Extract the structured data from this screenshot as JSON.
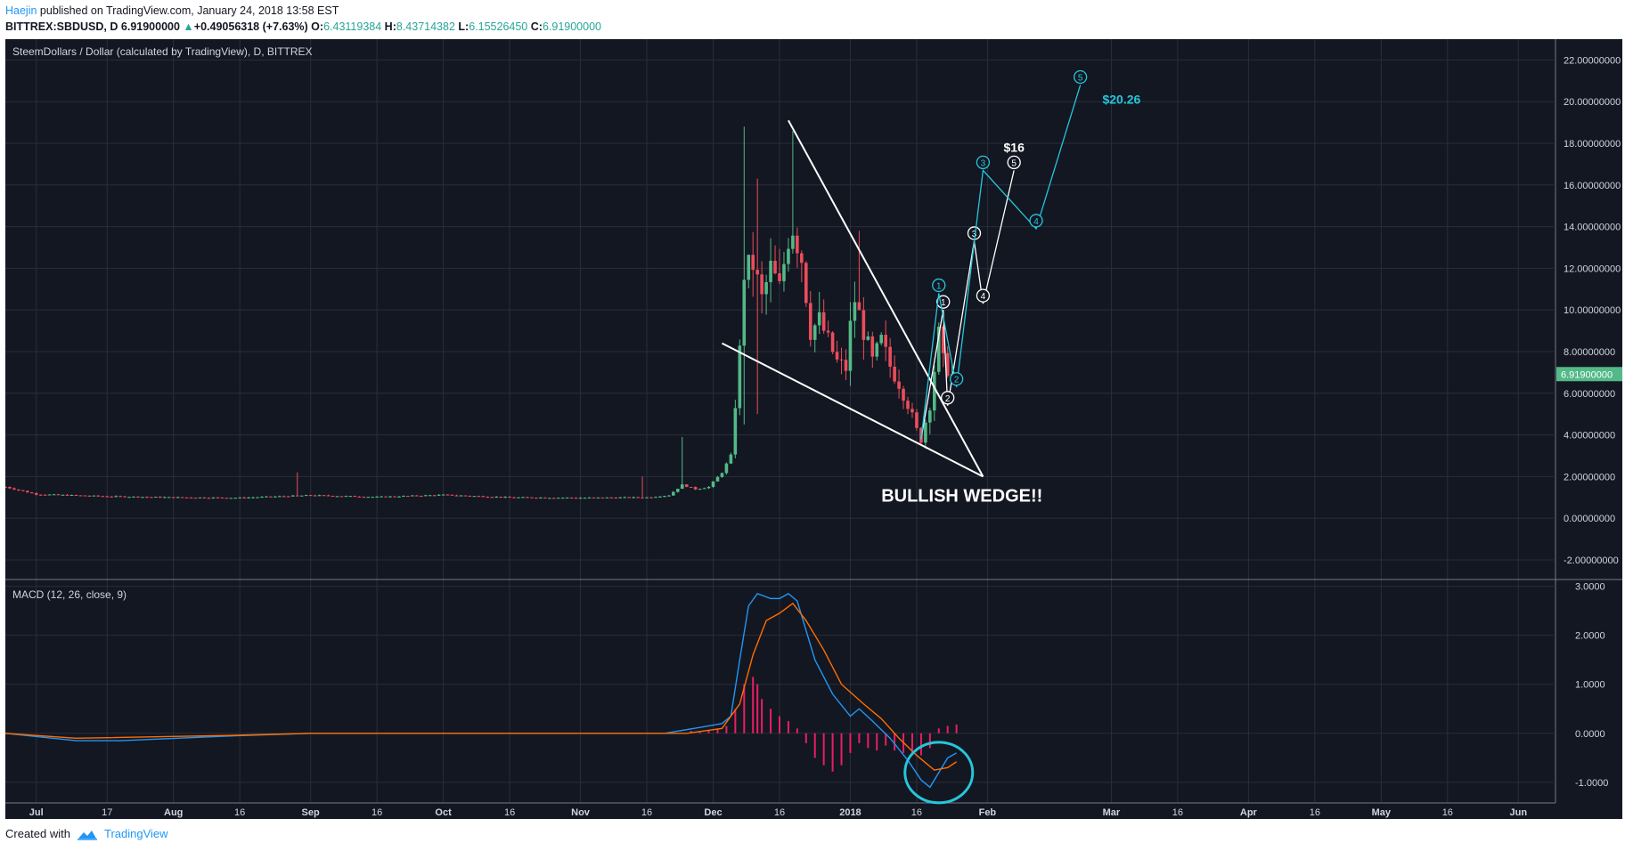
{
  "header": {
    "author": "Haejin",
    "published": "published on TradingView.com, January 24, 2018 13:58 EST",
    "symbol": "BITTREX:SBDUSD, D",
    "last": "6.91900000",
    "change_arrow": "▲",
    "change": "+0.49056318 (+7.63%)",
    "o_label": "O:",
    "o_value": "6.43119384",
    "h_label": "H:",
    "h_value": "8.43714382",
    "l_label": "L:",
    "l_value": "6.15526450",
    "c_label": "C:",
    "c_value": "6.91900000"
  },
  "footer": {
    "created_with": "Created with",
    "brand": "TradingView"
  },
  "colors": {
    "background": "#131722",
    "grid": "#2a2e39",
    "axis_text": "#d1d4dc",
    "up": "#53b987",
    "down": "#eb4d5c",
    "macd": "#2196f3",
    "signal": "#ff6d00",
    "histogram": "#e91e63",
    "cyan_annotation": "#26c6da",
    "white_annotation": "#ffffff"
  },
  "chart_data": [
    {
      "type": "candlestick",
      "title": "SteemDollars / Dollar (calculated by TradingView), D, BITTREX",
      "y_ticks": [
        "22.00000000",
        "20.00000000",
        "18.00000000",
        "16.00000000",
        "14.00000000",
        "12.00000000",
        "10.00000000",
        "8.00000000",
        "6.00000000",
        "4.00000000",
        "2.00000000",
        "0.00000000",
        "-2.00000000"
      ],
      "y_tick_values": [
        22,
        20,
        18,
        16,
        14,
        12,
        10,
        8,
        6,
        4,
        2,
        0,
        -2
      ],
      "ylim": [
        -2.9,
        23
      ],
      "x_ticks": [
        "Jul",
        "17",
        "Aug",
        "16",
        "Sep",
        "16",
        "Oct",
        "16",
        "Nov",
        "16",
        "Dec",
        "16",
        "2018",
        "16",
        "Feb",
        "Mar",
        "16",
        "Apr",
        "16",
        "May",
        "16",
        "Jun"
      ],
      "x_tick_dates": [
        "2017-07-01",
        "2017-07-17",
        "2017-08-01",
        "2017-08-16",
        "2017-09-01",
        "2017-09-16",
        "2017-10-01",
        "2017-10-16",
        "2017-11-01",
        "2017-11-16",
        "2017-12-01",
        "2017-12-16",
        "2018-01-01",
        "2018-01-16",
        "2018-02-01",
        "2018-03-01",
        "2018-03-16",
        "2018-04-01",
        "2018-04-16",
        "2018-05-01",
        "2018-05-16",
        "2018-06-01"
      ],
      "last_price_label": "6.91900000",
      "last_price": 6.919,
      "price_path": [
        [
          "2017-06-24",
          1.5
        ],
        [
          "2017-07-01",
          1.15
        ],
        [
          "2017-07-17",
          1.05
        ],
        [
          "2017-08-01",
          1.0
        ],
        [
          "2017-08-16",
          0.98
        ],
        [
          "2017-09-01",
          1.1
        ],
        [
          "2017-09-16",
          1.02
        ],
        [
          "2017-10-01",
          1.12
        ],
        [
          "2017-10-16",
          1.0
        ],
        [
          "2017-11-01",
          0.98
        ],
        [
          "2017-11-16",
          1.0
        ],
        [
          "2017-11-21",
          1.1
        ],
        [
          "2017-11-24",
          1.6
        ],
        [
          "2017-11-27",
          1.4
        ],
        [
          "2017-11-30",
          1.5
        ],
        [
          "2017-12-03",
          2.2
        ],
        [
          "2017-12-05",
          3.0
        ],
        [
          "2017-12-07",
          8.0
        ],
        [
          "2017-12-08",
          11.8
        ],
        [
          "2017-12-10",
          12.2
        ],
        [
          "2017-12-12",
          10.5
        ],
        [
          "2017-12-14",
          12.0
        ],
        [
          "2017-12-16",
          11.0
        ],
        [
          "2017-12-18",
          13.5
        ],
        [
          "2017-12-19",
          14.0
        ],
        [
          "2017-12-21",
          12.5
        ],
        [
          "2017-12-23",
          9.0
        ],
        [
          "2017-12-25",
          9.5
        ],
        [
          "2017-12-27",
          8.5
        ],
        [
          "2017-12-29",
          7.5
        ],
        [
          "2017-12-31",
          7.2
        ],
        [
          "2018-01-01",
          9.2
        ],
        [
          "2018-01-02",
          10.5
        ],
        [
          "2018-01-04",
          9.0
        ],
        [
          "2018-01-06",
          7.5
        ],
        [
          "2018-01-08",
          8.5
        ],
        [
          "2018-01-10",
          7.3
        ],
        [
          "2018-01-12",
          6.5
        ],
        [
          "2018-01-14",
          5.5
        ],
        [
          "2018-01-16",
          4.2
        ],
        [
          "2018-01-17",
          3.8
        ],
        [
          "2018-01-19",
          5.5
        ],
        [
          "2018-01-21",
          8.8
        ],
        [
          "2018-01-22",
          7.5
        ],
        [
          "2018-01-24",
          6.919
        ]
      ],
      "spikes": [
        {
          "date": "2017-08-29",
          "high": 2.2
        },
        {
          "date": "2017-11-15",
          "high": 2.0
        },
        {
          "date": "2017-11-24",
          "high": 3.9
        },
        {
          "date": "2017-12-08",
          "high": 18.8,
          "low": 4.5
        },
        {
          "date": "2017-12-11",
          "high": 16.3,
          "low": 5.0
        },
        {
          "date": "2017-12-19",
          "high": 18.6
        },
        {
          "date": "2018-01-03",
          "high": 13.8
        }
      ],
      "annotations": {
        "wedge_label": "BULLISH WEDGE!!",
        "wedge_upper": [
          [
            "2017-12-18",
            19.1
          ],
          [
            "2018-01-31",
            2.0
          ]
        ],
        "wedge_lower": [
          [
            "2017-12-03",
            8.4
          ],
          [
            "2018-01-31",
            2.0
          ]
        ],
        "white_wave": [
          {
            "label": "1",
            "date": "2018-01-22",
            "value": 10.0
          },
          {
            "label": "2",
            "date": "2018-01-23",
            "value": 5.4
          },
          {
            "label": "3",
            "date": "2018-01-29",
            "value": 13.3
          },
          {
            "label": "4",
            "date": "2018-01-31",
            "value": 10.3
          },
          {
            "label": "5",
            "date": "2018-02-07",
            "value": 16.7
          }
        ],
        "white_wave_start": [
          "2018-01-17",
          3.8
        ],
        "white_target_label": "$16",
        "white_target": [
          "2018-02-07",
          17.6
        ],
        "cyan_wave": [
          {
            "label": "1",
            "date": "2018-01-21",
            "value": 10.8
          },
          {
            "label": "2",
            "date": "2018-01-25",
            "value": 6.3
          },
          {
            "label": "3",
            "date": "2018-01-31",
            "value": 16.7
          },
          {
            "label": "4",
            "date": "2018-02-12",
            "value": 13.9
          },
          {
            "label": "5",
            "date": "2018-02-22",
            "value": 20.8
          }
        ],
        "cyan_wave_start": [
          "2018-01-17",
          3.8
        ],
        "cyan_target_label": "$20.26",
        "cyan_target": [
          "2018-02-27",
          19.9
        ]
      }
    },
    {
      "type": "line",
      "title": "MACD (12, 26, close, 9)",
      "y_ticks": [
        "3.0000",
        "2.0000",
        "1.0000",
        "0.0000",
        "-1.0000"
      ],
      "y_tick_values": [
        3,
        2,
        1,
        0,
        -1
      ],
      "ylim": [
        -1.42,
        3.12
      ],
      "series": [
        {
          "name": "",
          "role": "macd",
          "points": [
            [
              "2017-06-24",
              0
            ],
            [
              "2017-07-10",
              -0.15
            ],
            [
              "2017-07-20",
              -0.15
            ],
            [
              "2017-08-15",
              -0.05
            ],
            [
              "2017-09-01",
              0.0
            ],
            [
              "2017-11-20",
              0.0
            ],
            [
              "2017-11-28",
              0.12
            ],
            [
              "2017-12-03",
              0.2
            ],
            [
              "2017-12-05",
              0.35
            ],
            [
              "2017-12-07",
              1.5
            ],
            [
              "2017-12-09",
              2.6
            ],
            [
              "2017-12-11",
              2.85
            ],
            [
              "2017-12-14",
              2.75
            ],
            [
              "2017-12-16",
              2.75
            ],
            [
              "2017-12-18",
              2.85
            ],
            [
              "2017-12-20",
              2.7
            ],
            [
              "2017-12-24",
              1.5
            ],
            [
              "2017-12-28",
              0.8
            ],
            [
              "2018-01-01",
              0.35
            ],
            [
              "2018-01-03",
              0.5
            ],
            [
              "2018-01-06",
              0.25
            ],
            [
              "2018-01-10",
              -0.1
            ],
            [
              "2018-01-14",
              -0.55
            ],
            [
              "2018-01-17",
              -0.95
            ],
            [
              "2018-01-19",
              -1.1
            ],
            [
              "2018-01-21",
              -0.8
            ],
            [
              "2018-01-23",
              -0.5
            ],
            [
              "2018-01-25",
              -0.4
            ]
          ]
        },
        {
          "name": "",
          "role": "signal",
          "points": [
            [
              "2017-06-24",
              0
            ],
            [
              "2017-07-10",
              -0.1
            ],
            [
              "2017-08-15",
              -0.04
            ],
            [
              "2017-09-01",
              0.0
            ],
            [
              "2017-11-25",
              0.0
            ],
            [
              "2017-12-03",
              0.1
            ],
            [
              "2017-12-07",
              0.6
            ],
            [
              "2017-12-10",
              1.6
            ],
            [
              "2017-12-13",
              2.3
            ],
            [
              "2017-12-16",
              2.45
            ],
            [
              "2017-12-19",
              2.65
            ],
            [
              "2017-12-22",
              2.3
            ],
            [
              "2017-12-26",
              1.7
            ],
            [
              "2017-12-30",
              1.0
            ],
            [
              "2018-01-04",
              0.6
            ],
            [
              "2018-01-08",
              0.3
            ],
            [
              "2018-01-12",
              -0.1
            ],
            [
              "2018-01-16",
              -0.45
            ],
            [
              "2018-01-20",
              -0.75
            ],
            [
              "2018-01-23",
              -0.7
            ],
            [
              "2018-01-25",
              -0.58
            ]
          ]
        }
      ],
      "histogram": [
        [
          "2017-11-26",
          0.05
        ],
        [
          "2017-11-28",
          0.05
        ],
        [
          "2017-11-30",
          0.06
        ],
        [
          "2017-12-02",
          0.1
        ],
        [
          "2017-12-04",
          0.15
        ],
        [
          "2017-12-06",
          0.5
        ],
        [
          "2017-12-08",
          1.0
        ],
        [
          "2017-12-10",
          1.15
        ],
        [
          "2017-12-11",
          1.0
        ],
        [
          "2017-12-12",
          0.7
        ],
        [
          "2017-12-14",
          0.5
        ],
        [
          "2017-12-16",
          0.35
        ],
        [
          "2017-12-18",
          0.25
        ],
        [
          "2017-12-20",
          0.1
        ],
        [
          "2017-12-22",
          -0.2
        ],
        [
          "2017-12-24",
          -0.5
        ],
        [
          "2017-12-26",
          -0.65
        ],
        [
          "2017-12-28",
          -0.78
        ],
        [
          "2017-12-30",
          -0.65
        ],
        [
          "2018-01-01",
          -0.4
        ],
        [
          "2018-01-03",
          -0.2
        ],
        [
          "2018-01-05",
          -0.3
        ],
        [
          "2018-01-07",
          -0.35
        ],
        [
          "2018-01-09",
          -0.25
        ],
        [
          "2018-01-11",
          -0.35
        ],
        [
          "2018-01-13",
          -0.4
        ],
        [
          "2018-01-15",
          -0.45
        ],
        [
          "2018-01-17",
          -0.45
        ],
        [
          "2018-01-19",
          -0.3
        ],
        [
          "2018-01-21",
          0.1
        ],
        [
          "2018-01-23",
          0.15
        ],
        [
          "2018-01-25",
          0.18
        ]
      ],
      "highlight_circle": {
        "center_date": "2018-01-21",
        "center_value": -0.8
      }
    }
  ]
}
